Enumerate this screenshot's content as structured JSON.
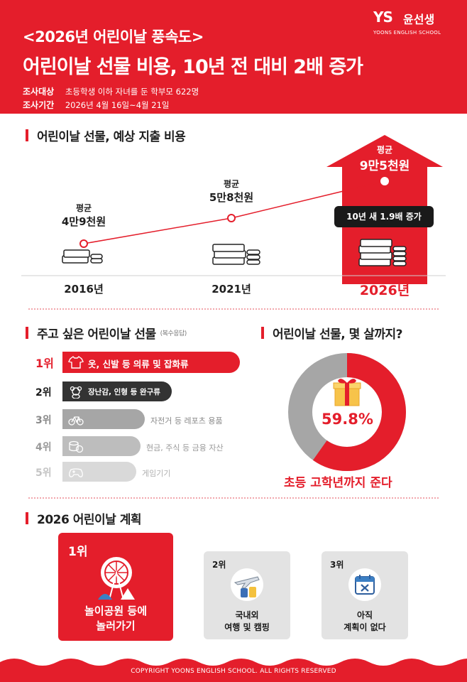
{
  "header": {
    "subtitle": "<2026년 어린이날 풍속도>",
    "title": "어린이날 선물 비용, 10년 전 대비 2배 증가",
    "survey": [
      {
        "key": "조사대상",
        "value": "초등학생 이하 자녀를 둔 학부모 622명"
      },
      {
        "key": "조사기간",
        "value": "2026년 4월 16일~4월 21일"
      }
    ]
  },
  "logo": {
    "mark": "YS",
    "name": "윤선생",
    "english": "YOONS ENGLISH SCHOOL"
  },
  "section1": {
    "title": "어린이날 선물, 예상 지출 비용",
    "points": [
      {
        "year": "2016년",
        "avg": "평균",
        "amount": "4만9천원",
        "value_won": 49000
      },
      {
        "year": "2021년",
        "avg": "평균",
        "amount": "5만8천원",
        "value_won": 58000
      },
      {
        "year": "2026년",
        "avg": "평균",
        "amount": "9만5천원",
        "value_won": 95000
      }
    ],
    "badge": "10년 새 1.9배 증가"
  },
  "section2": {
    "title": "주고 싶은 어린이날 선물",
    "note": "(복수응답)",
    "ranks": [
      {
        "rank": "1위",
        "label": "옷, 신발 등 의류 및 잡화류",
        "icon": "shirt-icon"
      },
      {
        "rank": "2위",
        "label": "장난감, 인형 등 완구류",
        "icon": "teddy-bear-icon"
      },
      {
        "rank": "3위",
        "label": "자전거 등 레포츠 용품",
        "icon": "bicycle-icon"
      },
      {
        "rank": "4위",
        "label": "현금, 주식 등 금융 자산",
        "icon": "coin-icon"
      },
      {
        "rank": "5위",
        "label": "게임기기",
        "icon": "gamepad-icon"
      }
    ]
  },
  "section3": {
    "title": "어린이날 선물, 몇 살까지?",
    "percent_value": 59.8,
    "percent_label": "59.8%",
    "caption": "초등 고학년까지 준다",
    "colors": {
      "primary": "#e41e2b",
      "rest": "#a6a6a6"
    }
  },
  "section4": {
    "title": "2026 어린이날 계획",
    "plans": [
      {
        "rank": "1위",
        "line1": "놀이공원 등에",
        "line2": "놀러가기",
        "icon": "ferris-wheel-icon"
      },
      {
        "rank": "2위",
        "line1": "국내외",
        "line2": "여행 및 캠핑",
        "icon": "airplane-luggage-icon"
      },
      {
        "rank": "3위",
        "line1": "아직",
        "line2": "계획이 없다",
        "icon": "calendar-x-icon"
      }
    ]
  },
  "footer": {
    "copyright": "COPYRIGHT YOONS ENGLISH SCHOOL. ALL RIGHTS RESERVED"
  },
  "colors": {
    "brand_red": "#e41e2b",
    "dark": "#1a1a1a",
    "gray": "#a6a6a6",
    "light_gray": "#e6e6e6"
  }
}
